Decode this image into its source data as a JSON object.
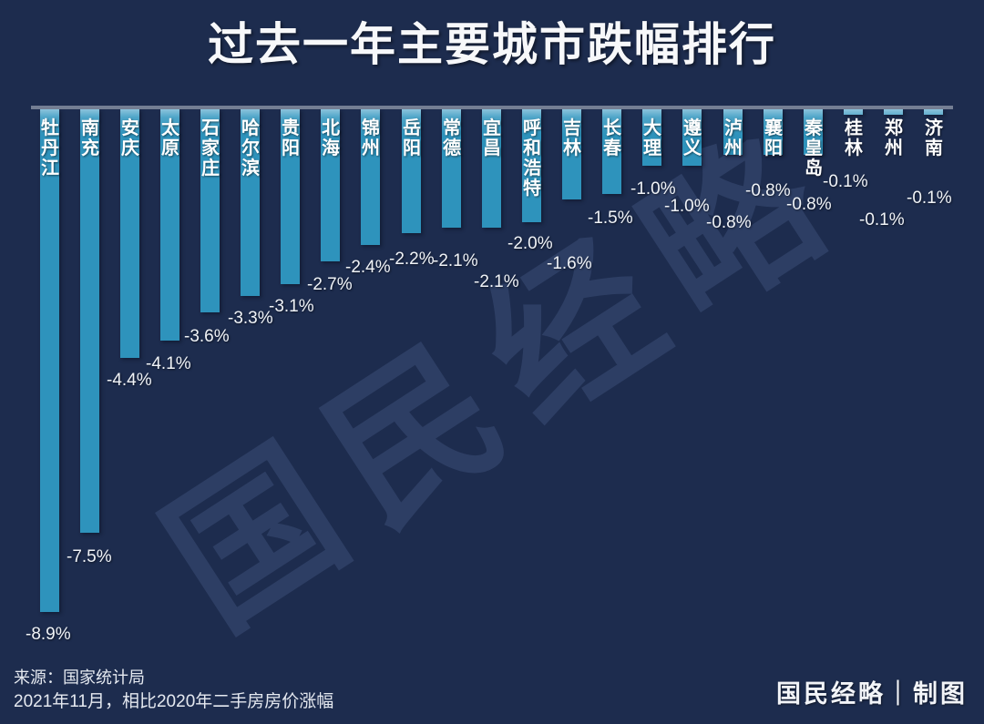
{
  "title": "过去一年主要城市跌幅排行",
  "watermark": "国民经略",
  "footer": {
    "source_line1": "来源：国家统计局",
    "source_line2": "2021年11月，相比2020年二手房房价涨幅",
    "credit": "国民经略｜制图"
  },
  "colors": {
    "background": "#1d2c4e",
    "bar": "#2e93bc",
    "bar_top": "#8cc3dc",
    "axis_line": "#747e93",
    "text": "#ffffff"
  },
  "chart_data": {
    "type": "bar",
    "title": "过去一年主要城市跌幅排行",
    "orientation": "vertical-hanging-from-top-axis",
    "unit": "%",
    "categories": [
      "牡丹江",
      "南充",
      "安庆",
      "太原",
      "石家庄",
      "哈尔滨",
      "贵阳",
      "北海",
      "锦州",
      "岳阳",
      "常德",
      "宜昌",
      "呼和浩特",
      "吉林",
      "长春",
      "大理",
      "遵义",
      "泸州",
      "襄阳",
      "秦皇岛",
      "桂林",
      "郑州",
      "济南"
    ],
    "values": [
      -8.9,
      -7.5,
      -4.4,
      -4.1,
      -3.6,
      -3.3,
      -3.1,
      -2.7,
      -2.4,
      -2.2,
      -2.1,
      -2.1,
      -2.0,
      -1.6,
      -1.5,
      -1.0,
      -1.0,
      -0.8,
      -0.8,
      -0.8,
      -0.1,
      -0.1,
      -0.1
    ],
    "labels": [
      "-8.9%",
      "-7.5%",
      "-4.4%",
      "-4.1%",
      "-3.6%",
      "-3.3%",
      "-3.1%",
      "-2.7%",
      "-2.4%",
      "-2.2%",
      "-2.1%",
      "-2.1%",
      "-2.0%",
      "-1.6%",
      "-1.5%",
      "-1.0%",
      "-1.0%",
      "-0.8%",
      "-0.8%",
      "-0.8%",
      "-0.1%",
      "-0.1%",
      "-0.1%"
    ],
    "ylim": [
      -9.5,
      0
    ],
    "baseline": 0,
    "grid": "off",
    "legend": "none",
    "source": "国家统计局",
    "note": "2021年11月，相比2020年二手房房价涨幅"
  }
}
